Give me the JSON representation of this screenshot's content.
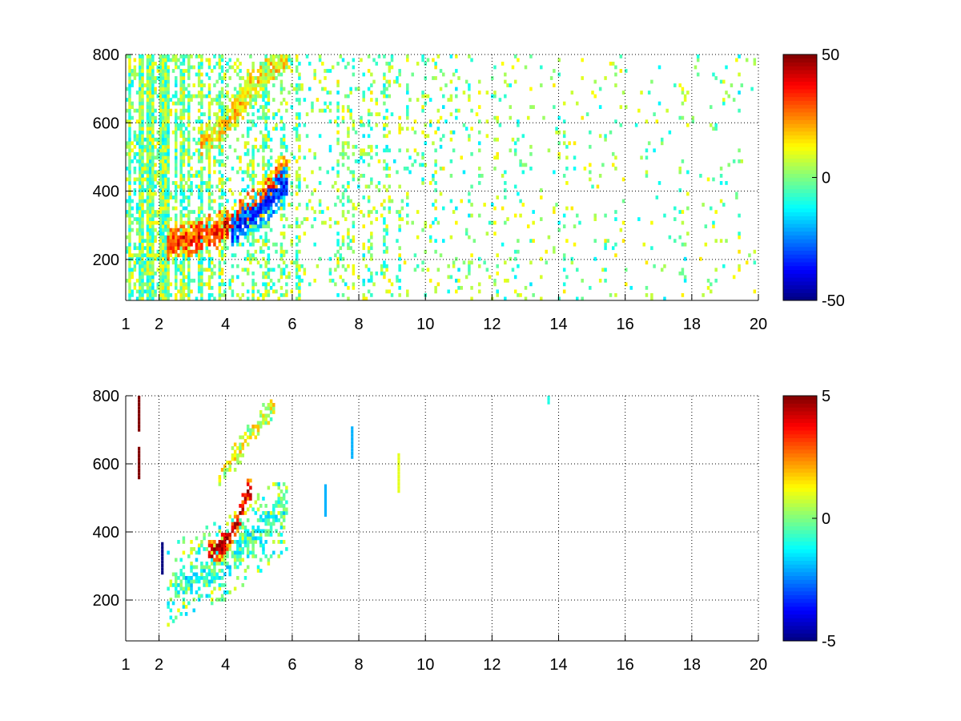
{
  "chart_data": [
    {
      "type": "heatmap",
      "title": "",
      "xlabel": "",
      "ylabel": "",
      "x_tick_labels": [
        "1",
        "2",
        "4",
        "6",
        "8",
        "10",
        "12",
        "14",
        "16",
        "18",
        "20"
      ],
      "x_ticks": [
        1,
        2,
        4,
        6,
        8,
        10,
        12,
        14,
        16,
        18,
        20
      ],
      "y_tick_labels": [
        "200",
        "400",
        "600",
        "800"
      ],
      "y_ticks": [
        200,
        400,
        600,
        800
      ],
      "xlim": [
        1,
        20
      ],
      "ylim": [
        80,
        800
      ],
      "grid": true,
      "colormap": "jet",
      "colorbar": {
        "range": [
          -50,
          50
        ],
        "tick_labels": [
          "50",
          "0",
          "-50"
        ],
        "ticks": [
          50,
          0,
          -50
        ]
      },
      "features": [
        {
          "name": "main ridge",
          "x": [
            2.3,
            3.0,
            3.5,
            4.0,
            4.5,
            5.0,
            5.5,
            5.8
          ],
          "y": [
            250,
            260,
            275,
            300,
            330,
            370,
            420,
            470
          ],
          "value": 35
        },
        {
          "name": "negative edge",
          "x": [
            4.2,
            4.6,
            5.0,
            5.4,
            5.8
          ],
          "y": [
            290,
            310,
            340,
            380,
            420
          ],
          "value": -35
        },
        {
          "name": "upper branch",
          "x": [
            3.3,
            3.8,
            4.3,
            4.8,
            5.3,
            5.8
          ],
          "y": [
            540,
            580,
            640,
            700,
            750,
            790
          ],
          "value": 15
        }
      ],
      "background": {
        "x_range": [
          1,
          20
        ],
        "density": "decreasing with x",
        "value_range": [
          -15,
          15
        ]
      }
    },
    {
      "type": "heatmap",
      "title": "",
      "xlabel": "",
      "ylabel": "",
      "x_tick_labels": [
        "1",
        "2",
        "4",
        "6",
        "8",
        "10",
        "12",
        "14",
        "16",
        "18",
        "20"
      ],
      "x_ticks": [
        1,
        2,
        4,
        6,
        8,
        10,
        12,
        14,
        16,
        18,
        20
      ],
      "y_tick_labels": [
        "200",
        "400",
        "600",
        "800"
      ],
      "y_ticks": [
        200,
        400,
        600,
        800
      ],
      "xlim": [
        1,
        20
      ],
      "ylim": [
        80,
        800
      ],
      "grid": true,
      "colormap": "jet",
      "colorbar": {
        "range": [
          -5,
          5
        ],
        "tick_labels": [
          "5",
          "0",
          "-5"
        ],
        "ticks": [
          5,
          0,
          -5
        ]
      },
      "features": [
        {
          "name": "main ridge",
          "x": [
            2.5,
            3.0,
            3.5,
            4.0,
            4.5,
            5.0,
            5.5,
            5.8
          ],
          "y": [
            250,
            255,
            280,
            310,
            350,
            400,
            450,
            480
          ],
          "value": -1
        },
        {
          "name": "positive streak",
          "x": [
            3.5,
            3.9,
            4.3,
            4.7
          ],
          "y": [
            340,
            360,
            420,
            520
          ],
          "value": 4.5
        },
        {
          "name": "upper branch",
          "x": [
            3.8,
            4.3,
            4.8,
            5.4
          ],
          "y": [
            560,
            620,
            700,
            770
          ],
          "value": 1
        }
      ],
      "isolated_points": [
        {
          "x": 1.4,
          "y": 700,
          "value": 5
        },
        {
          "x": 1.4,
          "y": 560,
          "value": 5
        },
        {
          "x": 2.1,
          "y": 280,
          "value": -5
        },
        {
          "x": 7.0,
          "y": 450,
          "value": -2
        },
        {
          "x": 7.8,
          "y": 620,
          "value": -2
        },
        {
          "x": 9.2,
          "y": 520,
          "value": 1
        },
        {
          "x": 13.7,
          "y": 780,
          "value": -1
        }
      ]
    }
  ]
}
